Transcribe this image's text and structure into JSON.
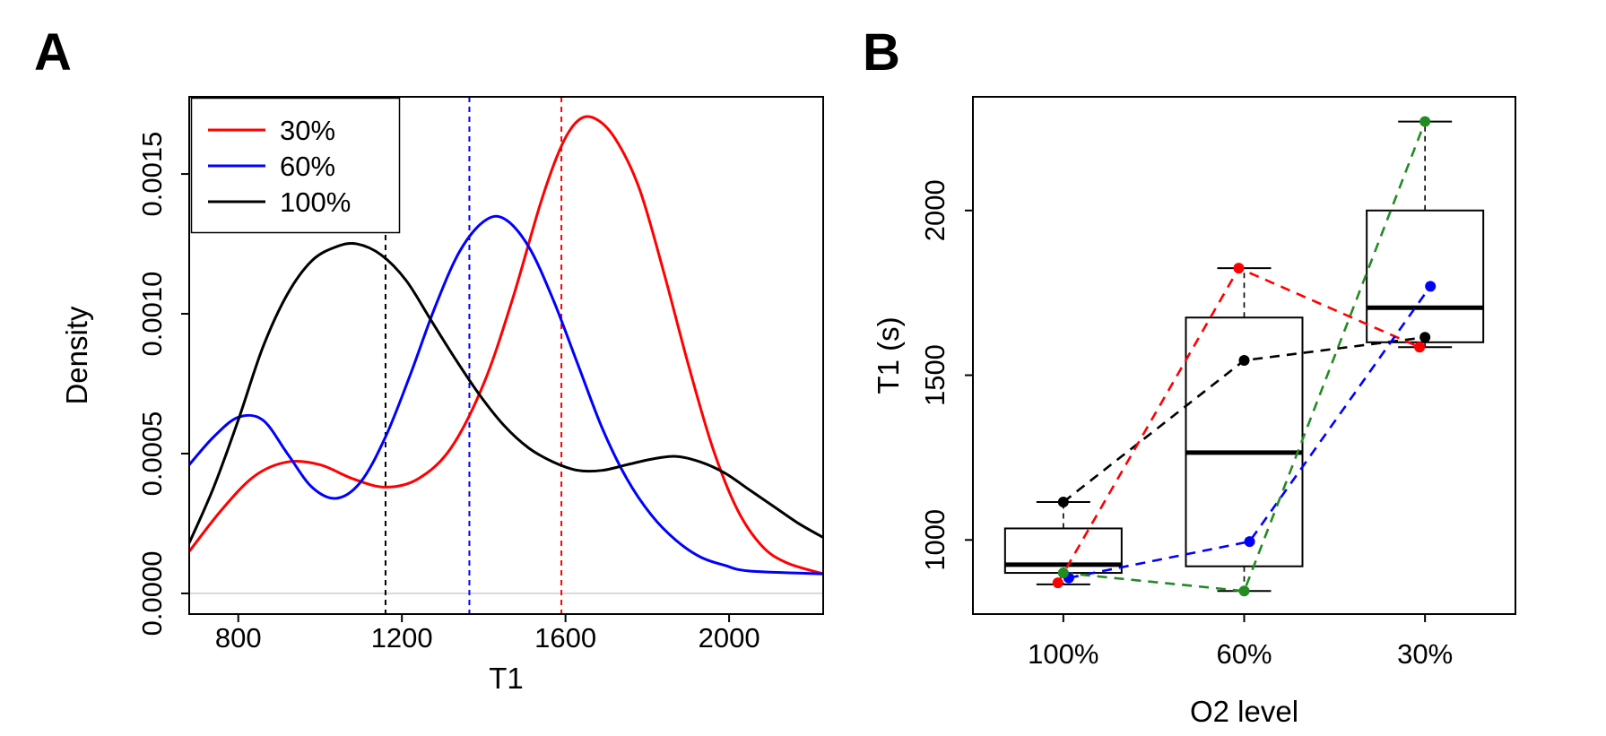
{
  "figure": {
    "panel_a_label": "A",
    "panel_b_label": "B"
  },
  "chart_data": [
    {
      "panel": "A",
      "type": "line",
      "title": "",
      "xlabel": "T1",
      "ylabel": "Density",
      "xlim": [
        680,
        2230
      ],
      "ylim": [
        -7.4e-05,
        0.001776
      ],
      "xticks": [
        800,
        1200,
        1600,
        2000
      ],
      "yticks": [
        0,
        0.0005,
        0.001,
        0.0015
      ],
      "ytick_labels": [
        "0.0000",
        "0.0005",
        "0.0010",
        "0.0015"
      ],
      "grid": false,
      "baseline": {
        "y": 0,
        "color": "#d9d9d9"
      },
      "legend": {
        "position": "top-left",
        "entries": [
          {
            "label": "30%",
            "color": "#ff0000"
          },
          {
            "label": "60%",
            "color": "#0000ff"
          },
          {
            "label": "100%",
            "color": "#000000"
          }
        ]
      },
      "vlines": [
        {
          "x": 1160,
          "color": "#000000",
          "style": "dashed"
        },
        {
          "x": 1365,
          "color": "#0000ff",
          "style": "dashed"
        },
        {
          "x": 1590,
          "color": "#ff0000",
          "style": "dashed"
        }
      ],
      "series": [
        {
          "name": "30%",
          "color": "#ff0000",
          "x": [
            680,
            760,
            840,
            920,
            1000,
            1080,
            1160,
            1240,
            1320,
            1400,
            1470,
            1540,
            1590,
            1630,
            1670,
            1720,
            1780,
            1840,
            1900,
            1960,
            2020,
            2080,
            2140,
            2230
          ],
          "y": [
            0.00015,
            0.0003,
            0.00042,
            0.00047,
            0.00046,
            0.00041,
            0.00038,
            0.00041,
            0.00052,
            0.00075,
            0.00105,
            0.0014,
            0.0016,
            0.00169,
            0.0017,
            0.00163,
            0.00145,
            0.00115,
            0.00082,
            0.00052,
            0.0003,
            0.00017,
            0.00011,
            7e-05
          ]
        },
        {
          "name": "60%",
          "color": "#0000ff",
          "x": [
            680,
            740,
            800,
            860,
            920,
            980,
            1040,
            1100,
            1160,
            1220,
            1280,
            1340,
            1400,
            1450,
            1510,
            1570,
            1630,
            1690,
            1750,
            1810,
            1870,
            1930,
            1990,
            2050,
            2230
          ],
          "y": [
            0.00046,
            0.00056,
            0.00063,
            0.00062,
            0.0005,
            0.00038,
            0.00034,
            0.0004,
            0.00056,
            0.00078,
            0.00102,
            0.00122,
            0.00133,
            0.00134,
            0.00124,
            0.00105,
            0.00082,
            0.00059,
            0.00041,
            0.00028,
            0.00019,
            0.00013,
            0.0001,
            8e-05,
            7e-05
          ]
        },
        {
          "name": "100%",
          "color": "#000000",
          "x": [
            680,
            740,
            800,
            860,
            920,
            980,
            1040,
            1090,
            1150,
            1210,
            1270,
            1330,
            1390,
            1450,
            1510,
            1570,
            1630,
            1690,
            1750,
            1810,
            1870,
            1930,
            1990,
            2050,
            2110,
            2170,
            2230
          ],
          "y": [
            0.00018,
            0.00038,
            0.00062,
            0.00088,
            0.00107,
            0.00119,
            0.00124,
            0.00125,
            0.00121,
            0.00112,
            0.00098,
            0.00084,
            0.00071,
            0.0006,
            0.00052,
            0.00047,
            0.00044,
            0.00044,
            0.00046,
            0.00048,
            0.00049,
            0.00047,
            0.00043,
            0.00037,
            0.00031,
            0.00025,
            0.0002
          ]
        }
      ]
    },
    {
      "panel": "B",
      "type": "box",
      "title": "",
      "xlabel": "O2 level",
      "ylabel": "T1 (s)",
      "categories": [
        "100%",
        "60%",
        "30%"
      ],
      "ylim": [
        775,
        2345
      ],
      "yticks": [
        1000,
        1500,
        2000
      ],
      "ytick_labels": [
        "1000",
        "1500",
        "2000"
      ],
      "boxes": [
        {
          "category": "100%",
          "min": 865,
          "q1": 900,
          "median": 925,
          "q3": 1035,
          "max": 1115
        },
        {
          "category": "60%",
          "min": 845,
          "q1": 920,
          "median": 1265,
          "q3": 1675,
          "max": 1825
        },
        {
          "category": "30%",
          "min": 1585,
          "q1": 1600,
          "median": 1705,
          "q3": 2000,
          "max": 2270
        }
      ],
      "subjects": [
        {
          "name": "black",
          "color": "#000000",
          "x_offset": 0,
          "values": [
            1115,
            1545,
            1615
          ]
        },
        {
          "name": "red",
          "color": "#ff0000",
          "x_offset": -0.03,
          "values": [
            870,
            1825,
            1585
          ]
        },
        {
          "name": "blue",
          "color": "#0000ff",
          "x_offset": 0.03,
          "values": [
            885,
            995,
            1770
          ]
        },
        {
          "name": "green",
          "color": "#228b22",
          "x_offset": 0,
          "values": [
            900,
            845,
            2270
          ]
        }
      ]
    }
  ]
}
